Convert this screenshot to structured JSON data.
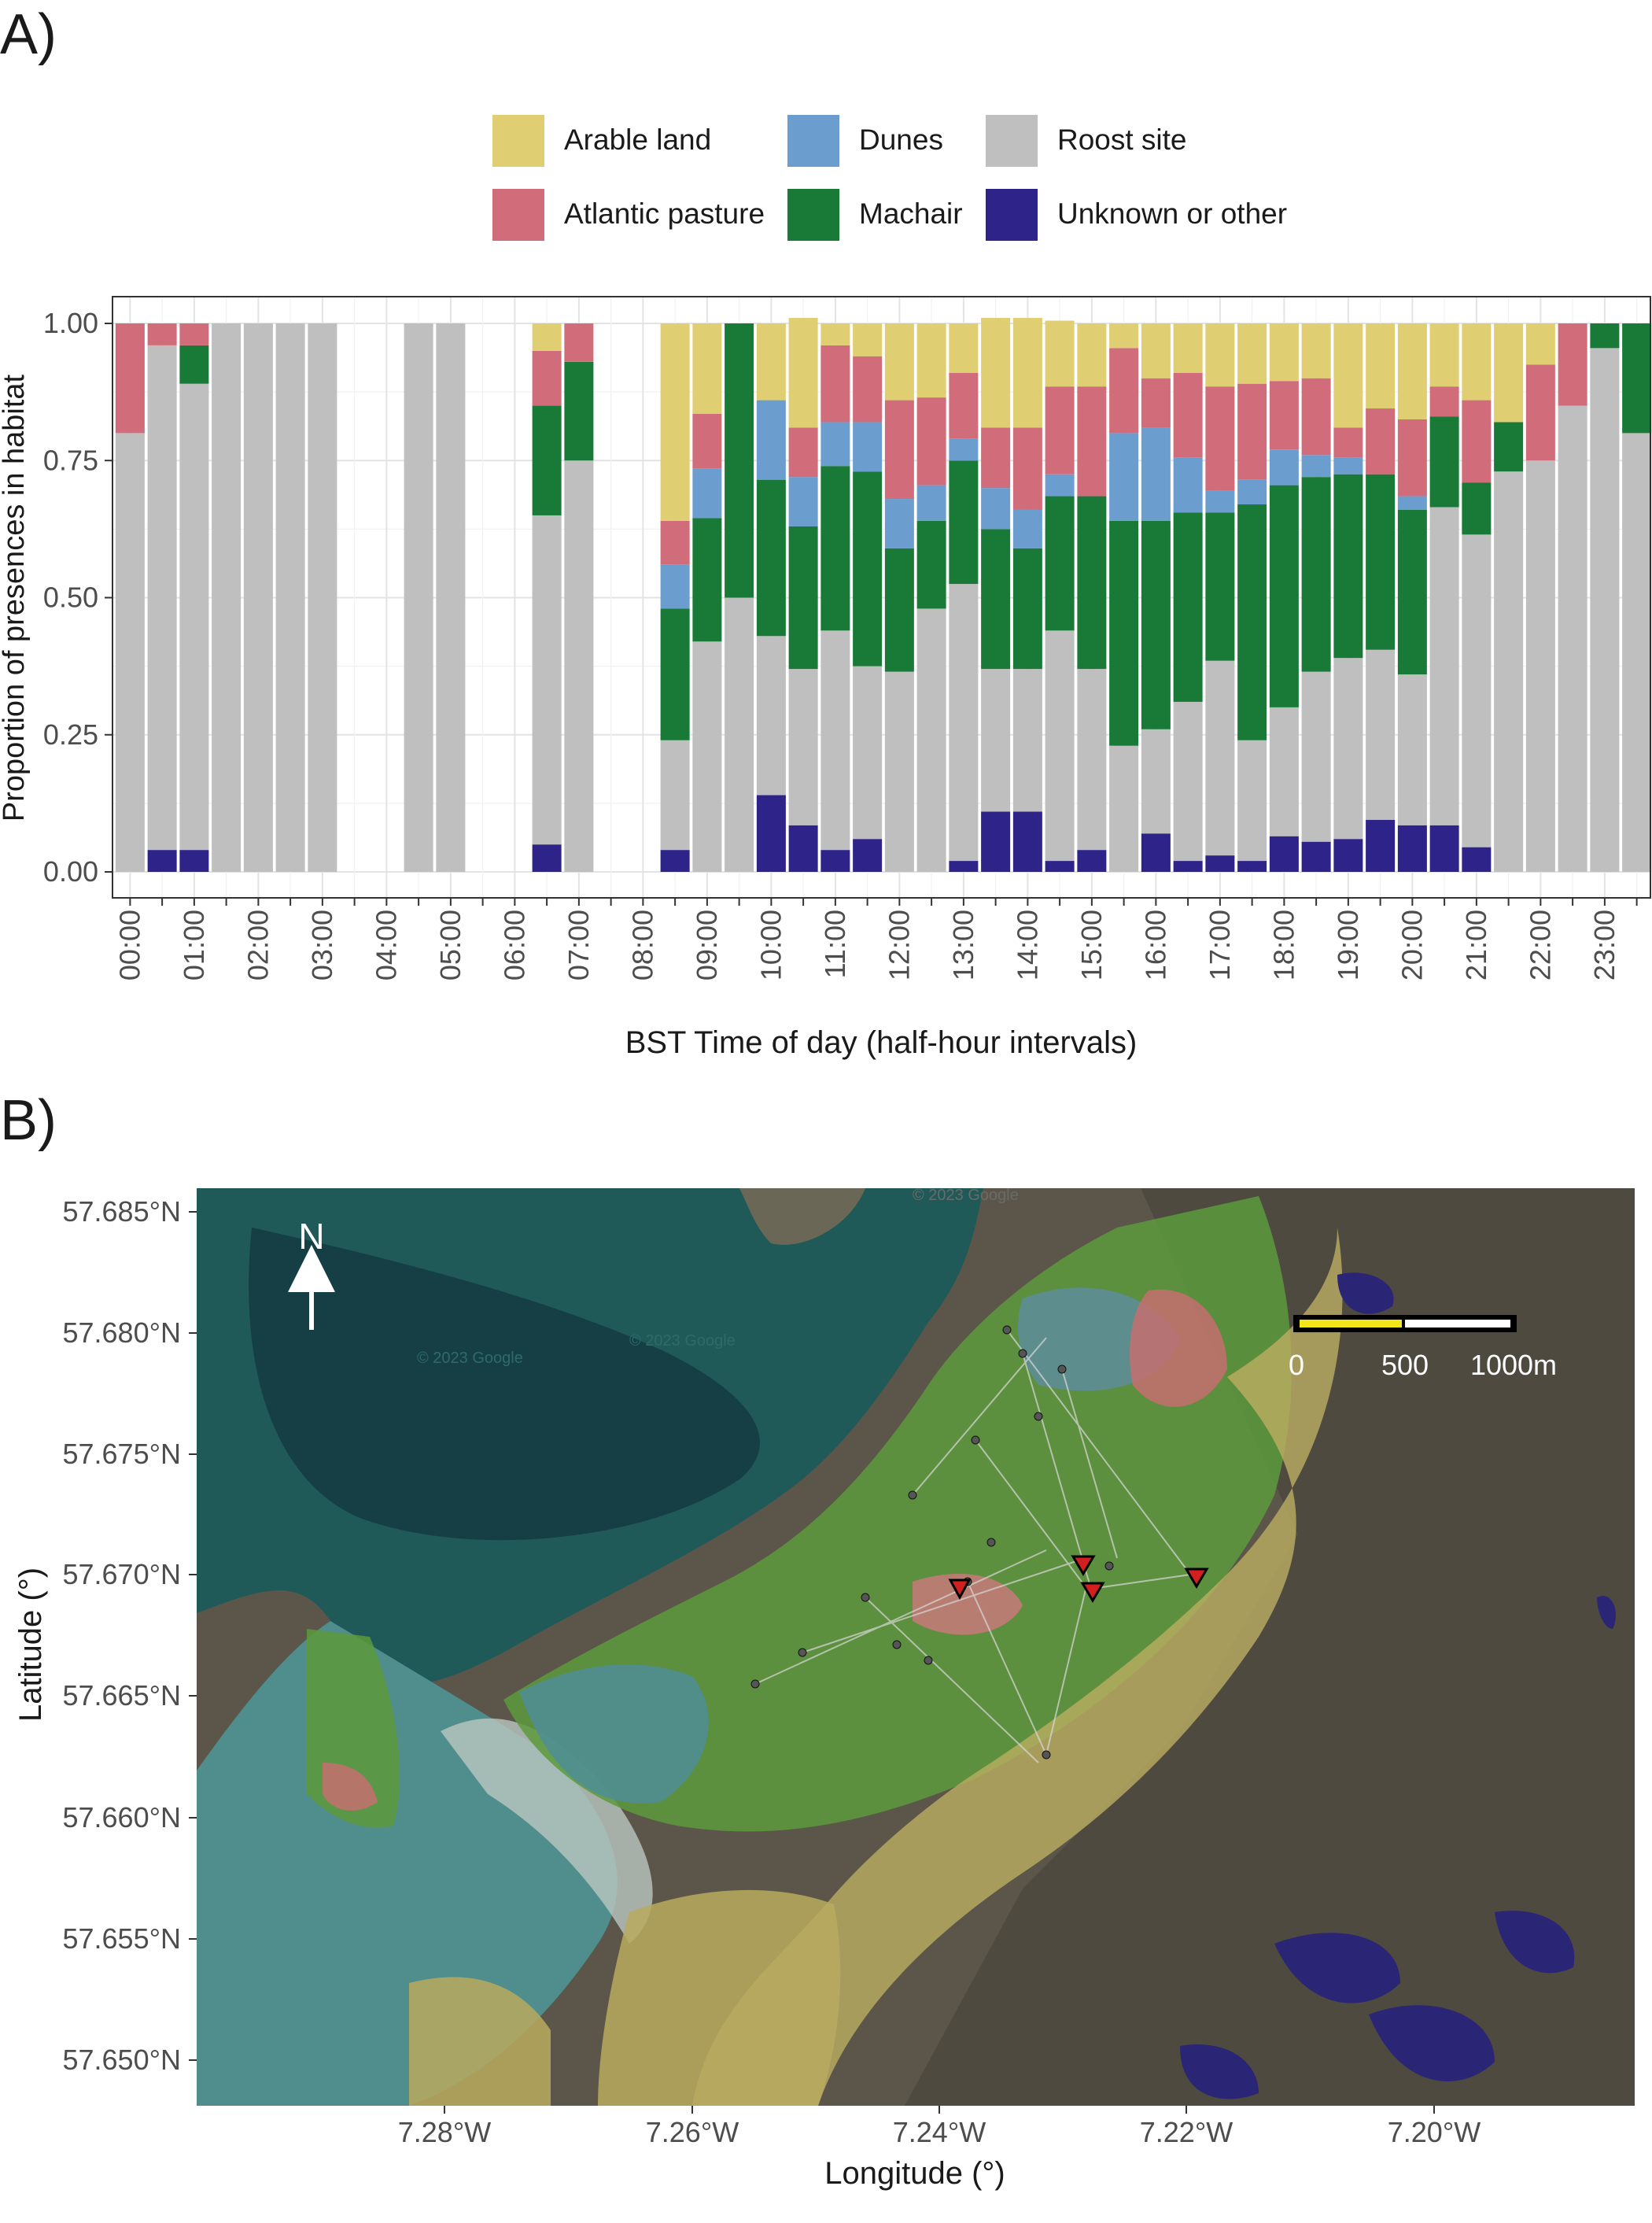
{
  "panel_a": {
    "label": "A)",
    "legend": [
      {
        "name": "Arable land",
        "color": "#dfce72"
      },
      {
        "name": "Atlantic pasture",
        "color": "#d16d7b"
      },
      {
        "name": "Dunes",
        "color": "#6c9dcf"
      },
      {
        "name": "Machair",
        "color": "#197a38"
      },
      {
        "name": "Roost site",
        "color": "#bfbfbf"
      },
      {
        "name": "Unknown or other",
        "color": "#2d2388"
      }
    ]
  },
  "panel_b": {
    "label": "B)",
    "north_label": "N",
    "scale_labels": [
      "0",
      "500",
      "1000m"
    ],
    "xlabel": "Longitude (°)",
    "ylabel": "Latitude (°)",
    "x_ticks": [
      "7.28°W",
      "7.26°W",
      "7.24°W",
      "7.22°W",
      "7.20°W"
    ],
    "y_ticks": [
      "57.685°N",
      "57.680°N",
      "57.675°N",
      "57.670°N",
      "57.665°N",
      "57.660°N",
      "57.655°N",
      "57.650°N"
    ],
    "watermarks": [
      "© 2023 Google",
      "© 2023 Google",
      "© 2023 Google"
    ]
  },
  "chart_data": [
    {
      "type": "bar",
      "stacked": true,
      "title": "",
      "xlabel": "BST Time of day (half-hour intervals)",
      "ylabel": "Proportion of presences in habitat",
      "ylim": [
        0,
        1
      ],
      "y_ticks": [
        "0.00",
        "0.25",
        "0.50",
        "0.75",
        "1.00"
      ],
      "x_tick_labels": [
        "00:00",
        "01:00",
        "02:00",
        "03:00",
        "04:00",
        "05:00",
        "06:00",
        "07:00",
        "08:00",
        "09:00",
        "10:00",
        "11:00",
        "12:00",
        "13:00",
        "14:00",
        "15:00",
        "16:00",
        "17:00",
        "18:00",
        "19:00",
        "20:00",
        "21:00",
        "22:00",
        "23:00"
      ],
      "grid": true,
      "legend_position": "top",
      "stack_order_bottom_to_top": [
        "Unknown or other",
        "Roost site",
        "Machair",
        "Dunes",
        "Atlantic pasture",
        "Arable land"
      ],
      "categories": [
        "00:00",
        "00:30",
        "01:00",
        "01:30",
        "02:00",
        "02:30",
        "03:00",
        "03:30",
        "04:00",
        "04:30",
        "05:00",
        "05:30",
        "06:00",
        "06:30",
        "07:00",
        "07:30",
        "08:00",
        "08:30",
        "09:00",
        "09:30",
        "10:00",
        "10:30",
        "11:00",
        "11:30",
        "12:00",
        "12:30",
        "13:00",
        "13:30",
        "14:00",
        "14:30",
        "15:00",
        "15:30",
        "16:00",
        "16:30",
        "17:00",
        "17:30",
        "18:00",
        "18:30",
        "19:00",
        "19:30",
        "20:00",
        "20:30",
        "21:00",
        "21:30",
        "22:00",
        "22:30",
        "23:00",
        "23:30"
      ],
      "series": [
        {
          "name": "Unknown or other",
          "values": [
            0,
            0.04,
            0.04,
            0,
            0,
            0,
            0,
            null,
            null,
            0,
            0,
            null,
            null,
            0.05,
            0,
            null,
            null,
            0.04,
            0,
            0,
            0.14,
            0.085,
            0.04,
            0.06,
            0,
            0,
            0.02,
            0.11,
            0.11,
            0.02,
            0.04,
            0,
            0.07,
            0.02,
            0.03,
            0.02,
            0.065,
            0.055,
            0.06,
            0.095,
            0.085,
            0.085,
            0.045,
            0,
            0,
            0,
            0,
            0
          ]
        },
        {
          "name": "Roost site",
          "values": [
            0.8,
            0.92,
            0.85,
            1,
            1,
            1,
            1,
            null,
            null,
            1,
            1,
            null,
            null,
            0.6,
            0.75,
            null,
            null,
            0.2,
            0.42,
            0.5,
            0.29,
            0.285,
            0.4,
            0.315,
            0.365,
            0.48,
            0.505,
            0.26,
            0.26,
            0.42,
            0.33,
            0.23,
            0.19,
            0.29,
            0.355,
            0.22,
            0.235,
            0.31,
            0.33,
            0.31,
            0.275,
            0.58,
            0.57,
            0.73,
            0.75,
            0.85,
            0.955,
            0.8
          ]
        },
        {
          "name": "Machair",
          "values": [
            0,
            0,
            0.07,
            0,
            0,
            0,
            0,
            null,
            null,
            0,
            0,
            null,
            null,
            0.2,
            0.18,
            null,
            null,
            0.24,
            0.225,
            0.5,
            0.285,
            0.26,
            0.3,
            0.355,
            0.225,
            0.16,
            0.225,
            0.255,
            0.22,
            0.245,
            0.315,
            0.41,
            0.38,
            0.345,
            0.27,
            0.43,
            0.405,
            0.355,
            0.335,
            0.32,
            0.3,
            0.165,
            0.095,
            0.09,
            0,
            0,
            0.045,
            0.2
          ]
        },
        {
          "name": "Dunes",
          "values": [
            0,
            0,
            0,
            0,
            0,
            0,
            0,
            null,
            null,
            0,
            0,
            null,
            null,
            0,
            0,
            null,
            null,
            0.08,
            0.09,
            0,
            0.145,
            0.09,
            0.08,
            0.09,
            0.09,
            0.065,
            0.04,
            0.075,
            0.07,
            0.04,
            0,
            0.16,
            0.17,
            0.1,
            0.04,
            0.045,
            0.065,
            0.04,
            0.03,
            0,
            0.025,
            0,
            0,
            0,
            0,
            0,
            0,
            0
          ]
        },
        {
          "name": "Atlantic pasture",
          "values": [
            0.2,
            0.04,
            0.04,
            0,
            0,
            0,
            0,
            null,
            null,
            0,
            0,
            null,
            null,
            0.1,
            0.07,
            null,
            null,
            0.08,
            0.1,
            0,
            0,
            0.09,
            0.14,
            0.12,
            0.18,
            0.16,
            0.12,
            0.11,
            0.15,
            0.16,
            0.2,
            0.155,
            0.09,
            0.155,
            0.19,
            0.175,
            0.125,
            0.14,
            0.055,
            0.12,
            0.14,
            0.055,
            0.15,
            0,
            0.175,
            0.15,
            0,
            0
          ]
        },
        {
          "name": "Arable land",
          "values": [
            0,
            0,
            0,
            0,
            0,
            0,
            0,
            null,
            null,
            0,
            0,
            null,
            null,
            0.05,
            0,
            null,
            null,
            0.36,
            0.165,
            0,
            0.14,
            0.2,
            0.04,
            0.06,
            0.14,
            0.135,
            0.09,
            0.2,
            0.2,
            0.12,
            0.115,
            0.045,
            0.1,
            0.09,
            0.115,
            0.11,
            0.105,
            0.1,
            0.19,
            0.155,
            0.175,
            0.115,
            0.14,
            0.18,
            0.075,
            0,
            0,
            0
          ]
        }
      ]
    }
  ]
}
